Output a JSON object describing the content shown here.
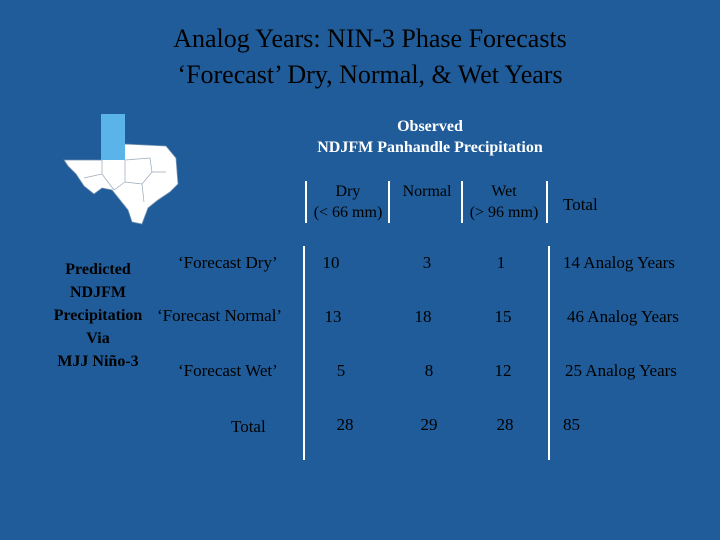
{
  "title": {
    "line1": "Analog Years: NIN-3 Phase Forecasts",
    "line2": "‘Forecast’ Dry, Normal, & Wet Years"
  },
  "observed": {
    "line1": "Observed",
    "line2": "NDJFM  Panhandle Precipitation"
  },
  "predicted": {
    "lines": [
      "Predicted",
      "NDJFM",
      "Precipitation",
      "Via",
      "MJJ Niño-3"
    ]
  },
  "columns": {
    "dry_line1": "Dry",
    "dry_line2": "(< 66 mm)",
    "normal": "Normal",
    "wet_line1": "Wet",
    "wet_line2": "(> 96 mm)",
    "total": "Total"
  },
  "rows": [
    {
      "label": "‘Forecast Dry’",
      "dry": "10",
      "normal": "3",
      "wet": "1",
      "total": "14  Analog Years"
    },
    {
      "label": "‘Forecast Normal’",
      "dry": "13",
      "normal": "18",
      "wet": "15",
      "total": "46  Analog Years"
    },
    {
      "label": "‘Forecast Wet’",
      "dry": "5",
      "normal": "8",
      "wet": "12",
      "total": "25  Analog Years"
    },
    {
      "label": "Total",
      "dry": "28",
      "normal": "29",
      "wet": "28",
      "total": "85"
    }
  ],
  "colors": {
    "background": "#1f5c99",
    "panhandle_highlight": "#5ab4ea",
    "state_fill": "#ffffff"
  }
}
